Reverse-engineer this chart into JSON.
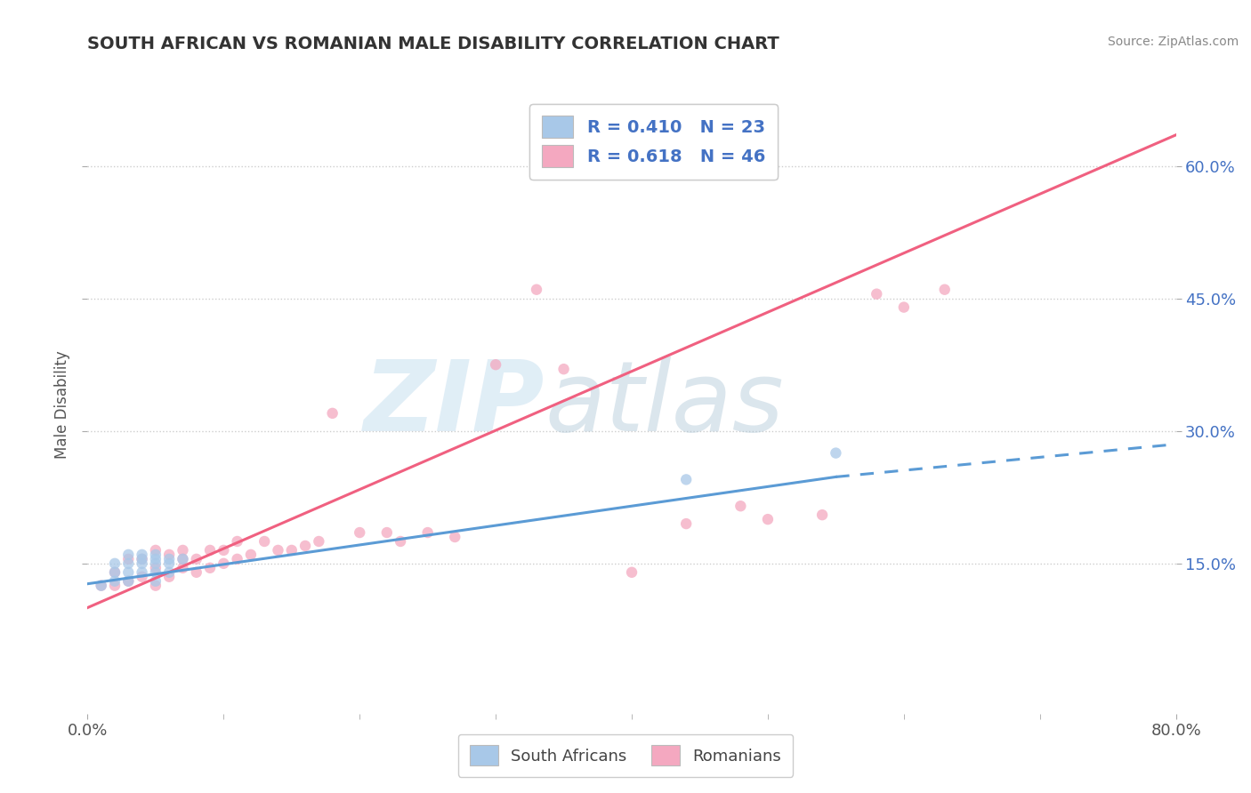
{
  "title": "SOUTH AFRICAN VS ROMANIAN MALE DISABILITY CORRELATION CHART",
  "source": "Source: ZipAtlas.com",
  "ylabel": "Male Disability",
  "xlim": [
    0.0,
    0.8
  ],
  "ylim": [
    -0.02,
    0.68
  ],
  "ytick_labels": [
    "15.0%",
    "30.0%",
    "45.0%",
    "60.0%"
  ],
  "ytick_values": [
    0.15,
    0.3,
    0.45,
    0.6
  ],
  "watermark_zip": "ZIP",
  "watermark_atlas": "atlas",
  "color_sa": "#a8c8e8",
  "color_ro": "#f4a8c0",
  "color_sa_line": "#5b9bd5",
  "color_ro_line": "#f06080",
  "sa_scatter_x": [
    0.01,
    0.02,
    0.02,
    0.02,
    0.03,
    0.03,
    0.03,
    0.03,
    0.04,
    0.04,
    0.04,
    0.04,
    0.05,
    0.05,
    0.05,
    0.05,
    0.05,
    0.06,
    0.06,
    0.06,
    0.07,
    0.44,
    0.55
  ],
  "sa_scatter_y": [
    0.125,
    0.13,
    0.14,
    0.15,
    0.13,
    0.14,
    0.15,
    0.16,
    0.14,
    0.15,
    0.155,
    0.16,
    0.13,
    0.14,
    0.15,
    0.155,
    0.16,
    0.14,
    0.15,
    0.155,
    0.155,
    0.245,
    0.275
  ],
  "ro_scatter_x": [
    0.01,
    0.02,
    0.02,
    0.03,
    0.03,
    0.04,
    0.04,
    0.05,
    0.05,
    0.05,
    0.06,
    0.06,
    0.07,
    0.07,
    0.07,
    0.08,
    0.08,
    0.09,
    0.09,
    0.1,
    0.1,
    0.11,
    0.11,
    0.12,
    0.13,
    0.14,
    0.15,
    0.16,
    0.17,
    0.18,
    0.2,
    0.22,
    0.23,
    0.25,
    0.27,
    0.3,
    0.33,
    0.35,
    0.4,
    0.44,
    0.48,
    0.5,
    0.54,
    0.58,
    0.6,
    0.63
  ],
  "ro_scatter_y": [
    0.125,
    0.125,
    0.14,
    0.13,
    0.155,
    0.135,
    0.155,
    0.125,
    0.145,
    0.165,
    0.135,
    0.16,
    0.145,
    0.155,
    0.165,
    0.14,
    0.155,
    0.145,
    0.165,
    0.15,
    0.165,
    0.155,
    0.175,
    0.16,
    0.175,
    0.165,
    0.165,
    0.17,
    0.175,
    0.32,
    0.185,
    0.185,
    0.175,
    0.185,
    0.18,
    0.375,
    0.46,
    0.37,
    0.14,
    0.195,
    0.215,
    0.2,
    0.205,
    0.455,
    0.44,
    0.46
  ],
  "sa_line_x0": 0.0,
  "sa_line_x_solid_end": 0.55,
  "sa_line_x1": 0.8,
  "sa_line_y0": 0.127,
  "sa_line_y_solid_end": 0.248,
  "sa_line_y1": 0.285,
  "ro_line_x0": 0.0,
  "ro_line_x1": 0.8,
  "ro_line_y0": 0.1,
  "ro_line_y1": 0.635,
  "background_color": "#ffffff",
  "grid_color": "#c8c8c8",
  "legend_text_color": "#4472c4",
  "axis_tick_color": "#4472c4",
  "ylabel_color": "#555555",
  "title_color": "#333333"
}
